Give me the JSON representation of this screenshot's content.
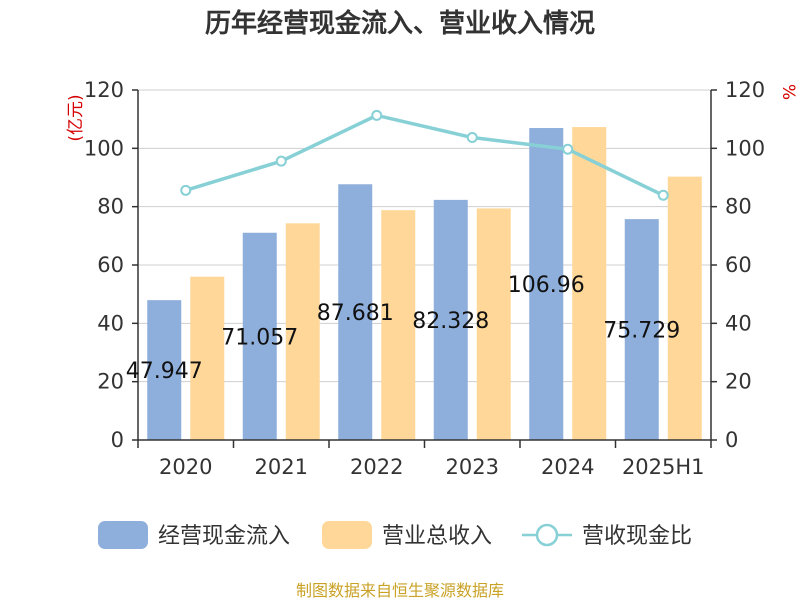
{
  "chart_data": {
    "type": "bar",
    "title": "历年经营现金流入、营业收入情况",
    "categories": [
      "2020",
      "2021",
      "2022",
      "2023",
      "2024",
      "2025H1"
    ],
    "y_left": {
      "unit": "(亿元)",
      "ylim": [
        0,
        120
      ],
      "ticks": [
        0,
        20,
        40,
        60,
        80,
        100,
        120
      ]
    },
    "y_right": {
      "unit": "%",
      "ylim": [
        0,
        120
      ],
      "ticks": [
        0,
        20,
        40,
        60,
        80,
        100,
        120
      ]
    },
    "grid": true,
    "legend_position": "bottom",
    "series": [
      {
        "name": "经营现金流入",
        "kind": "bar",
        "axis": "left",
        "color": "#8eaedb",
        "values": [
          47.947,
          71.057,
          87.681,
          82.328,
          106.96,
          75.729
        ],
        "labels": [
          "47.947",
          "71.057",
          "87.681",
          "82.328",
          "106.96",
          "75.729"
        ]
      },
      {
        "name": "营业总收入",
        "kind": "bar",
        "axis": "left",
        "color": "#ffd899",
        "values": [
          56.0,
          74.3,
          78.8,
          79.4,
          107.3,
          90.3
        ]
      },
      {
        "name": "营收现金比",
        "kind": "line",
        "axis": "right",
        "color": "#86d0d6",
        "values": [
          85.6,
          95.6,
          111.3,
          103.7,
          99.7,
          83.9
        ]
      }
    ],
    "source": "制图数据来自恒生聚源数据库"
  }
}
